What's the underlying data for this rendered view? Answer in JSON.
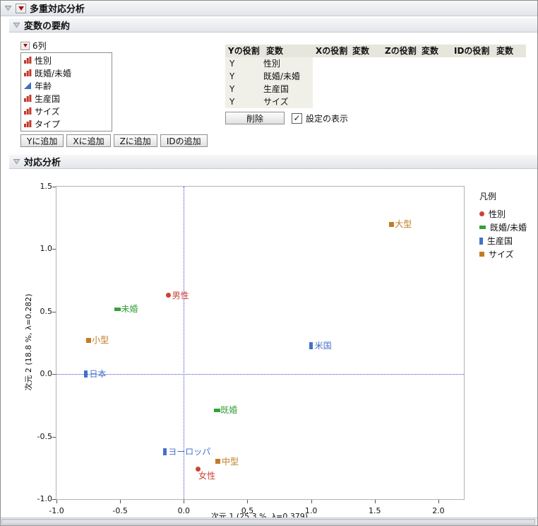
{
  "report": {
    "title": "多重対応分析"
  },
  "sections": {
    "summary_title": "変数の要約",
    "analysis_title": "対応分析"
  },
  "columns_panel": {
    "count_label": "6列",
    "items": [
      {
        "name": "性別",
        "type": "nominal"
      },
      {
        "name": "既婚/未婚",
        "type": "nominal"
      },
      {
        "name": "年齢",
        "type": "continuous"
      },
      {
        "name": "生産国",
        "type": "nominal"
      },
      {
        "name": "サイズ",
        "type": "nominal"
      },
      {
        "name": "タイプ",
        "type": "nominal"
      }
    ],
    "buttons": [
      "Yに追加",
      "Xに追加",
      "Zに追加",
      "IDの追加"
    ]
  },
  "roles_table": {
    "headers": [
      "Yの役割",
      "変数",
      "Xの役割",
      "変数",
      "Zの役割",
      "変数",
      "IDの役割",
      "変数"
    ],
    "rows": [
      [
        "Y",
        "性別"
      ],
      [
        "Y",
        "既婚/未婚"
      ],
      [
        "Y",
        "生産国"
      ],
      [
        "Y",
        "サイズ"
      ]
    ],
    "delete_button": "削除",
    "checkbox_label": "設定の表示",
    "checkbox_checked": true
  },
  "colors": {
    "nominal_icon": "#c4382b",
    "continuous_icon": "#3e6fbe",
    "red_triangle": "#b00000",
    "reference_line": "#4343cc"
  },
  "chart_data": {
    "type": "scatter",
    "title": "",
    "xlabel": "次元 1 (25.3 %, λ=0.379)",
    "ylabel": "次元 2 (18.8 %, λ=0.282)",
    "xlim": [
      -1.0,
      2.2
    ],
    "ylim": [
      -1.0,
      1.5
    ],
    "xticks": [
      -1.0,
      -0.5,
      0.0,
      0.5,
      1.0,
      1.5,
      2.0
    ],
    "yticks": [
      -1.0,
      -0.5,
      0.0,
      0.5,
      1.0,
      1.5
    ],
    "grid": false,
    "reference_lines": {
      "x": 0,
      "y": 0
    },
    "legend_title": "凡例",
    "legend_position": "right",
    "series": [
      {
        "name": "性別",
        "color": "#cb4335",
        "marker": "circle",
        "points": [
          {
            "label": "男性",
            "x": -0.12,
            "y": 0.63
          },
          {
            "label": "女性",
            "x": 0.11,
            "y": -0.76,
            "dx": 1,
            "dy": 9
          }
        ]
      },
      {
        "name": "既婚/未婚",
        "color": "#38a03a",
        "marker": "square-wide",
        "points": [
          {
            "label": "未婚",
            "x": -0.52,
            "y": 0.52
          },
          {
            "label": "既婚",
            "x": 0.26,
            "y": -0.29
          }
        ]
      },
      {
        "name": "生産国",
        "color": "#4472c8",
        "marker": "bar-vertical",
        "points": [
          {
            "label": "日本",
            "x": -0.77,
            "y": 0.0
          },
          {
            "label": "米国",
            "x": 1.0,
            "y": 0.23
          },
          {
            "label": "ヨーロッパ",
            "x": -0.15,
            "y": -0.62
          }
        ]
      },
      {
        "name": "サイズ",
        "color": "#c07d26",
        "marker": "square",
        "points": [
          {
            "label": "大型",
            "x": 1.63,
            "y": 1.2
          },
          {
            "label": "小型",
            "x": -0.75,
            "y": 0.27
          },
          {
            "label": "中型",
            "x": 0.27,
            "y": -0.7
          }
        ]
      }
    ]
  }
}
